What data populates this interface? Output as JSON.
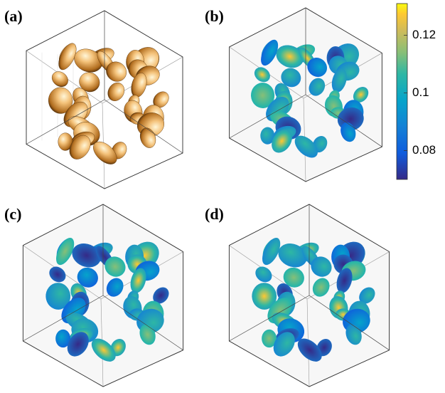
{
  "panels": [
    {
      "label": "(a)"
    },
    {
      "label": "(b)"
    },
    {
      "label": "(c)"
    },
    {
      "label": "(d)"
    }
  ],
  "colorbar": {
    "lim": [
      0.07,
      0.131
    ],
    "ticks": [
      0.08,
      0.1,
      0.12
    ]
  }
}
